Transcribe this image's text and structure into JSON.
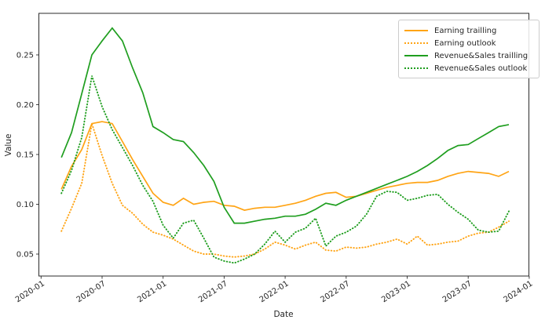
{
  "chart_data": {
    "type": "line",
    "title": "",
    "xlabel": "Date",
    "ylabel": "Value",
    "grid": false,
    "legend_position": "upper right",
    "xticks": [
      "2020-01",
      "2020-07",
      "2021-01",
      "2021-07",
      "2022-01",
      "2022-07",
      "2023-01",
      "2023-07",
      "2024-01"
    ],
    "yticks": [
      0.05,
      0.1,
      0.15,
      0.2,
      0.25
    ],
    "ylim": [
      0.028,
      0.292
    ],
    "xlim": [
      "2020-01",
      "2024-01"
    ],
    "x": [
      "2020-03",
      "2020-04",
      "2020-05",
      "2020-06",
      "2020-07",
      "2020-08",
      "2020-09",
      "2020-10",
      "2020-11",
      "2020-12",
      "2021-01",
      "2021-02",
      "2021-03",
      "2021-04",
      "2021-05",
      "2021-06",
      "2021-07",
      "2021-08",
      "2021-09",
      "2021-10",
      "2021-11",
      "2021-12",
      "2022-01",
      "2022-02",
      "2022-03",
      "2022-04",
      "2022-05",
      "2022-06",
      "2022-07",
      "2022-08",
      "2022-09",
      "2022-10",
      "2022-11",
      "2022-12",
      "2023-01",
      "2023-02",
      "2023-03",
      "2023-04",
      "2023-05",
      "2023-06",
      "2023-07",
      "2023-08",
      "2023-09",
      "2023-10",
      "2023-11"
    ],
    "series": [
      {
        "name": "Earning trailling",
        "color": "#ffa415",
        "line_style": "solid",
        "values": [
          0.115,
          0.138,
          0.155,
          0.181,
          0.183,
          0.181,
          0.163,
          0.145,
          0.128,
          0.111,
          0.102,
          0.099,
          0.106,
          0.1,
          0.102,
          0.103,
          0.099,
          0.098,
          0.094,
          0.096,
          0.097,
          0.097,
          0.099,
          0.101,
          0.104,
          0.108,
          0.111,
          0.112,
          0.107,
          0.108,
          0.111,
          0.114,
          0.117,
          0.119,
          0.121,
          0.122,
          0.122,
          0.124,
          0.128,
          0.131,
          0.133,
          0.132,
          0.131,
          0.128,
          0.133
        ]
      },
      {
        "name": "Earning outlook",
        "color": "#ffa415",
        "line_style": "dotted",
        "values": [
          0.073,
          0.096,
          0.121,
          0.181,
          0.149,
          0.121,
          0.099,
          0.091,
          0.08,
          0.072,
          0.069,
          0.065,
          0.059,
          0.053,
          0.05,
          0.05,
          0.048,
          0.047,
          0.048,
          0.05,
          0.055,
          0.062,
          0.059,
          0.055,
          0.059,
          0.062,
          0.054,
          0.053,
          0.057,
          0.056,
          0.057,
          0.06,
          0.062,
          0.065,
          0.06,
          0.068,
          0.059,
          0.06,
          0.062,
          0.063,
          0.068,
          0.071,
          0.072,
          0.077,
          0.083
        ]
      },
      {
        "name": "Revenue&Sales trailling",
        "color": "#1f9e1f",
        "line_style": "solid",
        "values": [
          0.147,
          0.172,
          0.211,
          0.25,
          0.264,
          0.277,
          0.264,
          0.237,
          0.212,
          0.178,
          0.172,
          0.165,
          0.163,
          0.152,
          0.139,
          0.123,
          0.097,
          0.081,
          0.081,
          0.083,
          0.085,
          0.086,
          0.088,
          0.088,
          0.09,
          0.095,
          0.101,
          0.099,
          0.104,
          0.108,
          0.112,
          0.116,
          0.12,
          0.124,
          0.128,
          0.133,
          0.139,
          0.146,
          0.154,
          0.159,
          0.16,
          0.166,
          0.172,
          0.178,
          0.18
        ]
      },
      {
        "name": "Revenue&Sales outlook",
        "color": "#1f9e1f",
        "line_style": "dotted",
        "values": [
          0.111,
          0.134,
          0.167,
          0.229,
          0.198,
          0.175,
          0.157,
          0.139,
          0.119,
          0.103,
          0.079,
          0.066,
          0.081,
          0.084,
          0.066,
          0.047,
          0.043,
          0.041,
          0.045,
          0.05,
          0.06,
          0.073,
          0.062,
          0.072,
          0.076,
          0.086,
          0.058,
          0.068,
          0.072,
          0.078,
          0.09,
          0.108,
          0.113,
          0.112,
          0.104,
          0.106,
          0.109,
          0.11,
          0.1,
          0.092,
          0.085,
          0.074,
          0.072,
          0.073,
          0.093
        ]
      }
    ]
  }
}
